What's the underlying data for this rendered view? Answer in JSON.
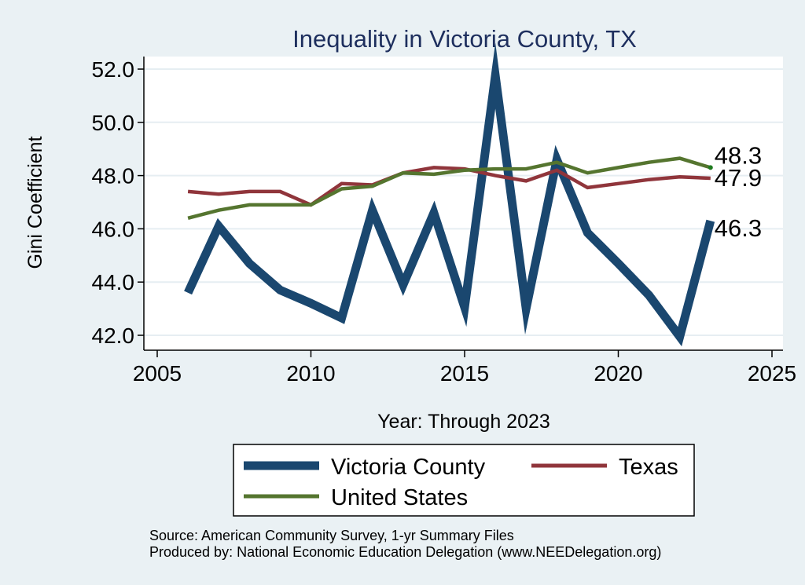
{
  "chart_data": {
    "type": "line",
    "title": "Inequality in Victoria County, TX",
    "xlabel": "Year: Through 2023",
    "ylabel": "Gini Coefficient",
    "xlim": [
      2005,
      2025
    ],
    "ylim": [
      42.0,
      52.0
    ],
    "x_ticks": [
      "2005",
      "2010",
      "2015",
      "2020",
      "2025"
    ],
    "y_ticks": [
      "42.0",
      "44.0",
      "46.0",
      "48.0",
      "50.0",
      "52.0"
    ],
    "grid": true,
    "legend_position": "bottom",
    "x": [
      2006,
      2007,
      2008,
      2009,
      2010,
      2011,
      2012,
      2013,
      2014,
      2015,
      2016,
      2017,
      2018,
      2019,
      2020,
      2021,
      2022,
      2023
    ],
    "series": [
      {
        "name": "Victoria County",
        "color": "#1a476f",
        "values": [
          43.6,
          46.1,
          44.7,
          43.7,
          43.2,
          42.65,
          46.7,
          43.9,
          46.6,
          43.05,
          51.75,
          43.0,
          48.6,
          45.85,
          44.7,
          43.5,
          41.95,
          46.3
        ],
        "end_label": "46.3"
      },
      {
        "name": "Texas",
        "color": "#90353b",
        "values": [
          47.4,
          47.3,
          47.4,
          47.4,
          46.9,
          47.7,
          47.65,
          48.1,
          48.3,
          48.25,
          48.0,
          47.8,
          48.2,
          47.55,
          47.7,
          47.85,
          47.95,
          47.9
        ],
        "end_label": "47.9"
      },
      {
        "name": "United States",
        "color": "#55752f",
        "values": [
          46.4,
          46.7,
          46.9,
          46.9,
          46.9,
          47.5,
          47.6,
          48.1,
          48.05,
          48.2,
          48.25,
          48.25,
          48.5,
          48.1,
          48.3,
          48.5,
          48.65,
          48.3
        ],
        "end_label": "48.3"
      }
    ]
  },
  "notes": {
    "source": "Source: American Community Survey, 1-yr Summary Files",
    "produced_by": "Produced by: National Economic Education Delegation (www.NEEDelegation.org)"
  }
}
